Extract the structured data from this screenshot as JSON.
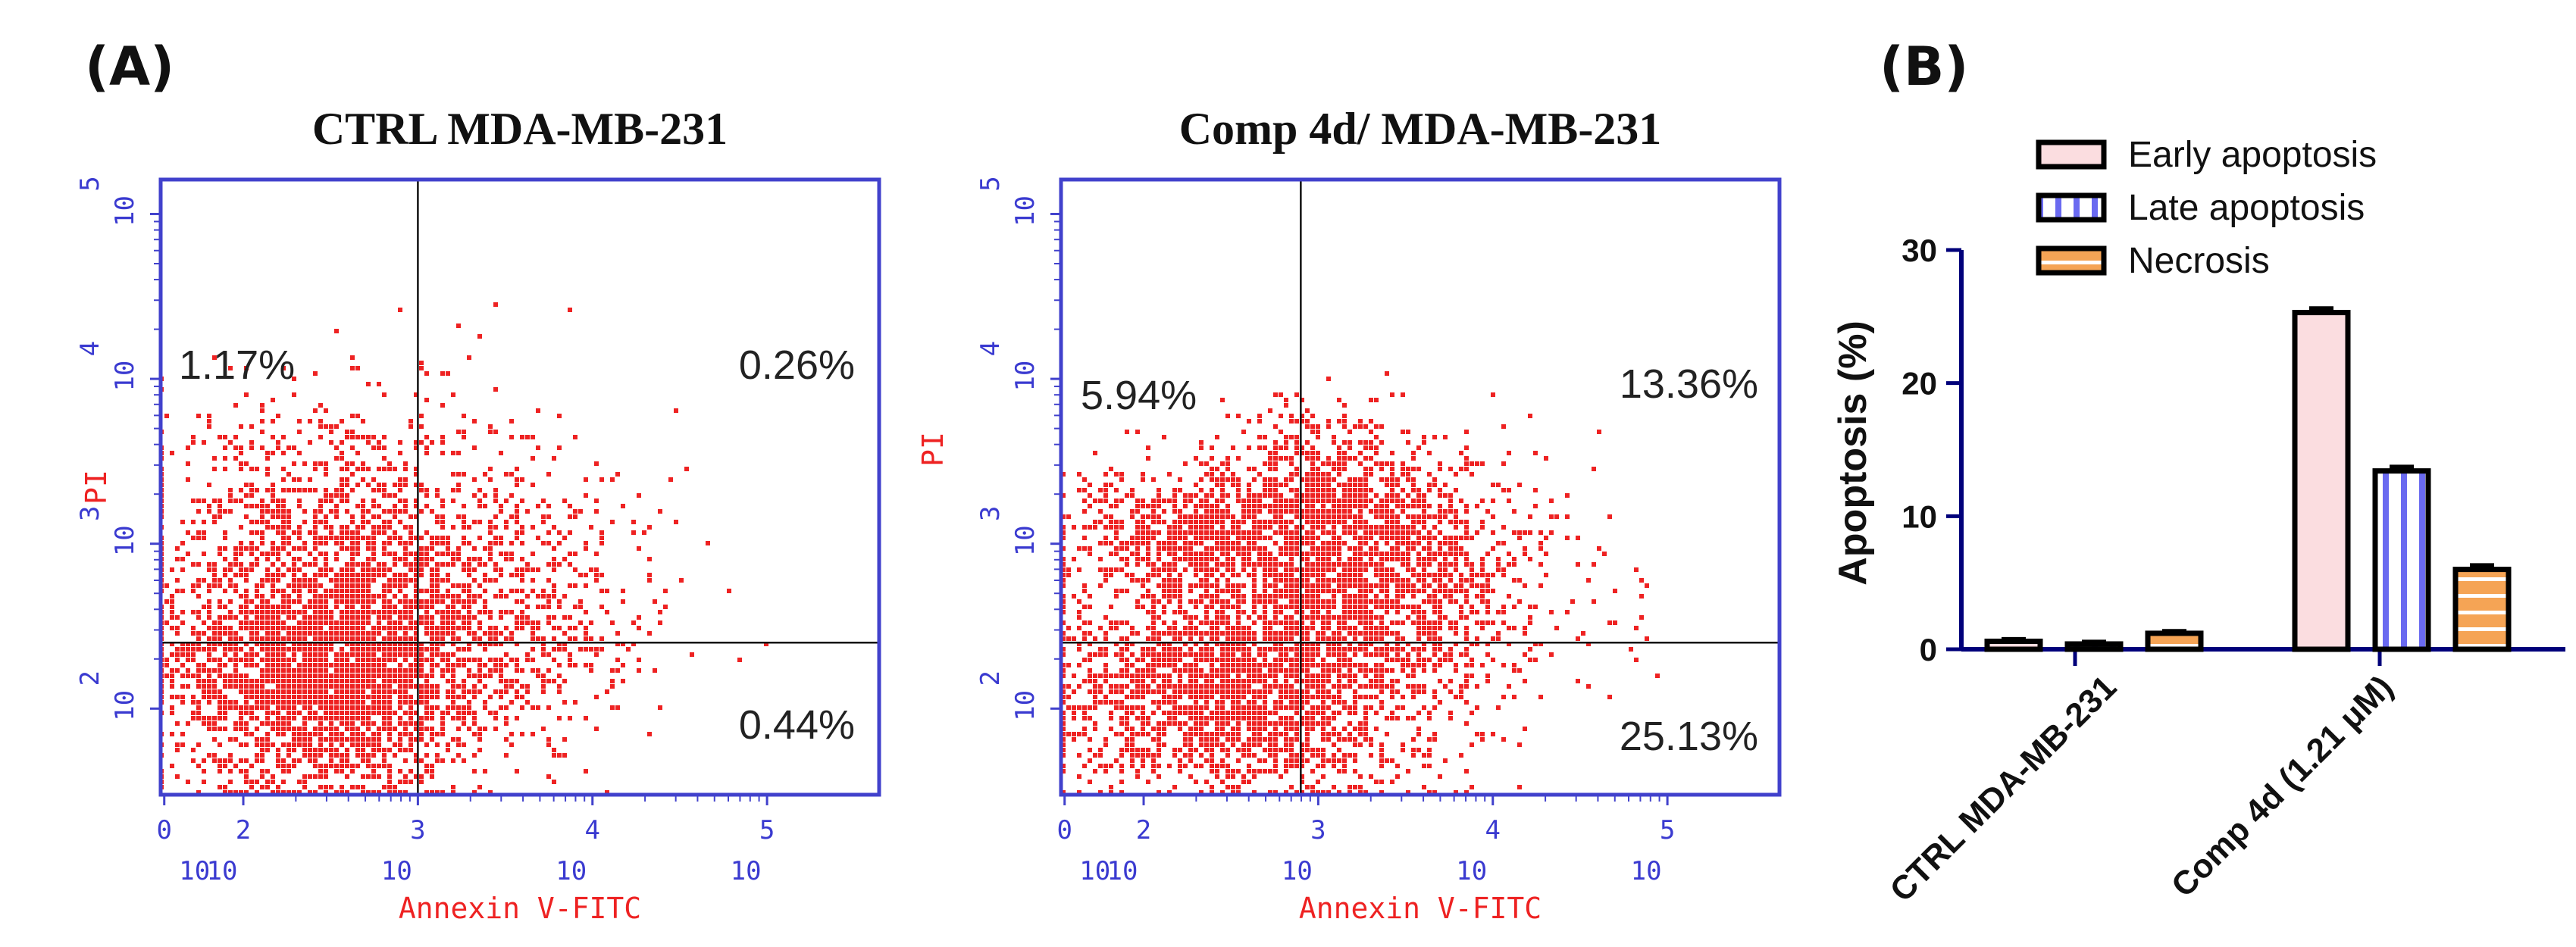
{
  "panel_a_label": "(A)",
  "panel_b_label": "(B)",
  "colors": {
    "frame": "#4141cc",
    "dots": "#ee2222",
    "early": "#fbdde0",
    "late": "#6a6af0",
    "necrosis": "#f5a455",
    "axis": "#00007a"
  },
  "chart_data": [
    {
      "type": "scatter",
      "title": "CTRL MDA-MB-231",
      "xlabel": "Annexin V-FITC",
      "ylabel": "PI",
      "x_ticks": [
        {
          "base": "10",
          "exp": "0"
        },
        {
          "base": "10",
          "exp": "2"
        },
        {
          "base": "10",
          "exp": "3"
        },
        {
          "base": "10",
          "exp": "4"
        },
        {
          "base": "10",
          "exp": "5"
        }
      ],
      "y_ticks": [
        {
          "base": "10",
          "exp": "2"
        },
        {
          "base": "10",
          "exp": "3"
        },
        {
          "base": "10",
          "exp": "4"
        },
        {
          "base": "10",
          "exp": "5"
        }
      ],
      "quadrants": {
        "upper_left": "1.17%",
        "upper_right": "0.26%",
        "lower_right": "0.44%"
      },
      "gate_x_decades": 3.0,
      "gate_y_decades": 2.4
    },
    {
      "type": "scatter",
      "title": "Comp 4d/ MDA-MB-231",
      "xlabel": "Annexin V-FITC",
      "ylabel": "PI",
      "x_ticks": [
        {
          "base": "10",
          "exp": "0"
        },
        {
          "base": "10",
          "exp": "2"
        },
        {
          "base": "10",
          "exp": "3"
        },
        {
          "base": "10",
          "exp": "4"
        },
        {
          "base": "10",
          "exp": "5"
        }
      ],
      "y_ticks": [
        {
          "base": "10",
          "exp": "2"
        },
        {
          "base": "10",
          "exp": "3"
        },
        {
          "base": "10",
          "exp": "4"
        },
        {
          "base": "10",
          "exp": "5"
        }
      ],
      "quadrants": {
        "upper_left": "5.94%",
        "upper_right": "13.36%",
        "lower_right": "25.13%"
      },
      "gate_x_decades": 2.9,
      "gate_y_decades": 2.4
    },
    {
      "type": "bar",
      "categories": [
        "CTRL MDA-MB-231",
        "Comp 4d (1.21 μM)"
      ],
      "series": [
        {
          "name": "Early apoptosis",
          "values": [
            0.6,
            25.3
          ],
          "errors": [
            0.15,
            0.3
          ]
        },
        {
          "name": "Late apoptosis",
          "values": [
            0.4,
            13.4
          ],
          "errors": [
            0.15,
            0.3
          ]
        },
        {
          "name": "Necrosis",
          "values": [
            1.2,
            6.0
          ],
          "errors": [
            0.15,
            0.3
          ]
        }
      ],
      "ylabel": "Apoptosis (%)",
      "ylim": [
        0,
        30
      ],
      "y_ticks": [
        "0",
        "10",
        "20",
        "30"
      ]
    }
  ]
}
